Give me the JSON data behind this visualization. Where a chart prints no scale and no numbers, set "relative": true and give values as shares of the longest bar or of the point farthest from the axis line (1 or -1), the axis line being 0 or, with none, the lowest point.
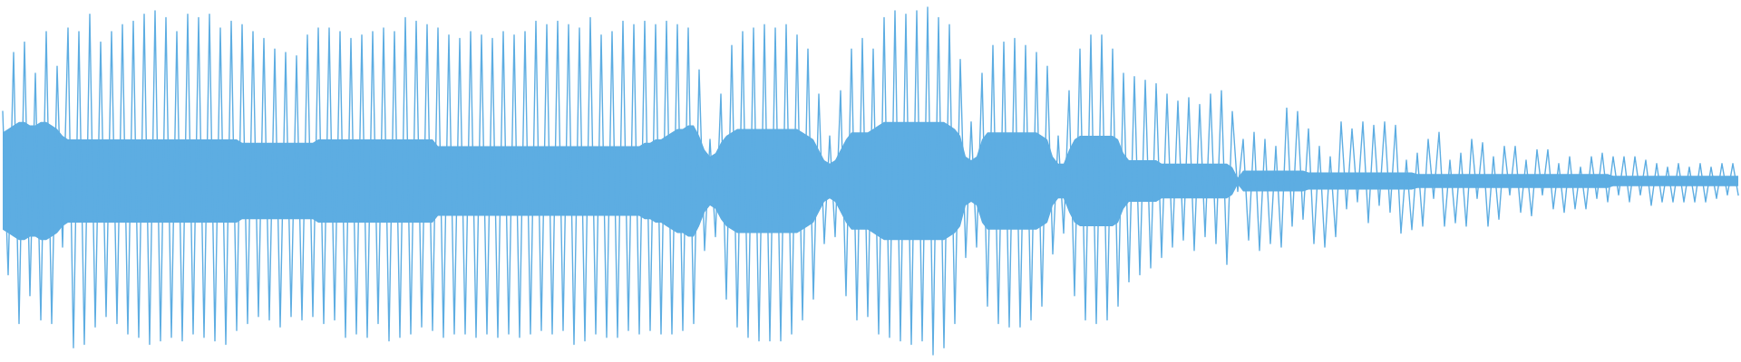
{
  "chart_data": {
    "type": "line",
    "relative": true,
    "tick_labels": false,
    "categories": [
      null,
      null,
      null,
      null,
      null,
      null,
      null,
      null,
      null,
      null,
      null,
      null,
      null,
      null,
      null,
      null,
      null,
      null,
      null,
      null,
      null,
      null,
      null,
      null,
      null,
      null,
      null,
      null,
      null,
      null,
      null,
      null,
      null,
      null,
      null,
      null,
      null,
      null,
      null,
      null,
      null,
      null,
      null,
      null,
      null,
      null,
      null,
      null,
      null,
      null,
      null,
      null,
      null,
      null,
      null,
      null,
      null,
      null,
      null,
      null,
      null,
      null,
      null,
      null,
      null,
      null,
      null,
      null,
      null,
      null,
      null,
      null,
      null,
      null,
      null,
      null,
      null,
      null,
      null,
      null,
      null,
      null,
      null,
      null,
      null,
      null,
      null,
      null,
      null,
      null,
      null,
      null,
      null,
      null,
      null,
      null,
      null,
      null,
      null,
      null,
      null,
      null,
      null,
      null,
      null,
      null,
      null,
      null,
      null,
      null,
      null,
      null,
      null,
      null,
      null,
      null,
      null,
      null,
      null,
      null,
      null,
      null,
      null,
      null,
      null,
      null,
      null,
      null,
      null,
      null,
      null,
      null,
      null,
      null,
      null,
      null,
      null,
      null,
      null,
      null,
      null,
      null,
      null,
      null,
      null,
      null,
      null,
      null,
      null,
      null,
      null,
      null,
      null,
      null,
      null,
      null,
      null,
      null,
      null,
      null,
      null,
      null,
      null,
      null,
      null,
      null,
      null,
      null,
      null,
      null,
      null,
      null,
      null,
      null,
      null,
      null,
      null,
      null,
      null,
      null,
      null,
      null,
      null,
      null,
      null,
      null,
      null,
      null,
      null,
      null,
      null,
      null,
      null,
      null,
      null,
      null,
      null,
      null,
      null,
      null,
      null,
      null,
      null,
      null,
      null,
      null,
      null,
      null,
      null,
      null,
      null,
      null,
      null,
      null,
      null,
      null,
      null,
      null,
      null,
      null,
      null,
      null,
      null,
      null,
      null,
      null,
      null,
      null,
      null,
      null,
      null,
      null,
      null,
      null,
      null,
      null,
      null,
      null,
      null,
      null,
      null,
      null,
      null,
      null,
      null,
      null,
      null,
      null,
      null,
      null,
      null,
      null,
      null,
      null,
      null,
      null,
      null,
      null,
      null,
      null,
      null,
      null,
      null,
      null,
      null,
      null,
      null,
      null,
      null,
      null,
      null,
      null,
      null,
      null,
      null,
      null,
      null,
      null,
      null,
      null,
      null,
      null,
      null,
      null,
      null,
      null,
      null,
      null,
      null,
      null,
      null,
      null,
      null,
      null,
      null,
      null,
      null,
      null,
      null,
      null,
      null,
      null,
      null,
      null,
      null,
      null,
      null,
      null,
      null,
      null,
      null,
      null,
      null,
      null,
      null,
      null,
      null,
      null,
      null,
      null
    ],
    "series": [
      {
        "color": "#5dade2",
        "values": [
          0.7,
          0.23,
          0.87,
          0.09,
          0.9,
          0.17,
          0.81,
          0.1,
          0.93,
          0.09,
          0.83,
          0.31,
          0.94,
          0.02,
          0.93,
          0.03,
          0.98,
          0.08,
          0.9,
          0.11,
          0.93,
          0.09,
          0.95,
          0.06,
          0.96,
          0.05,
          0.98,
          0.03,
          0.99,
          0.04,
          0.97,
          0.05,
          0.93,
          0.04,
          0.98,
          0.06,
          0.97,
          0.05,
          0.98,
          0.04,
          0.94,
          0.03,
          0.96,
          0.07,
          0.95,
          0.09,
          0.93,
          0.11,
          0.91,
          0.1,
          0.88,
          0.08,
          0.87,
          0.11,
          0.86,
          0.1,
          0.92,
          0.11,
          0.94,
          0.09,
          0.94,
          0.1,
          0.93,
          0.05,
          0.91,
          0.06,
          0.92,
          0.05,
          0.93,
          0.09,
          0.94,
          0.04,
          0.93,
          0.05,
          0.97,
          0.06,
          0.96,
          0.08,
          0.95,
          0.07,
          0.94,
          0.05,
          0.92,
          0.06,
          0.91,
          0.06,
          0.93,
          0.05,
          0.92,
          0.06,
          0.91,
          0.05,
          0.93,
          0.06,
          0.92,
          0.05,
          0.93,
          0.06,
          0.96,
          0.07,
          0.95,
          0.06,
          0.96,
          0.07,
          0.95,
          0.03,
          0.94,
          0.04,
          0.97,
          0.06,
          0.92,
          0.05,
          0.93,
          0.05,
          0.96,
          0.07,
          0.95,
          0.06,
          0.96,
          0.07,
          0.95,
          0.06,
          0.96,
          0.06,
          0.95,
          0.07,
          0.94,
          0.09,
          0.82,
          0.3,
          0.62,
          0.34,
          0.75,
          0.16,
          0.89,
          0.08,
          0.93,
          0.05,
          0.94,
          0.04,
          0.95,
          0.04,
          0.94,
          0.04,
          0.95,
          0.06,
          0.92,
          0.1,
          0.88,
          0.16,
          0.75,
          0.32,
          0.63,
          0.34,
          0.76,
          0.17,
          0.88,
          0.1,
          0.91,
          0.11,
          0.88,
          0.06,
          0.97,
          0.05,
          0.99,
          0.04,
          0.98,
          0.03,
          0.99,
          0.04,
          1.0,
          0.0,
          0.97,
          0.02,
          0.95,
          0.09,
          0.85,
          0.28,
          0.67,
          0.31,
          0.81,
          0.14,
          0.89,
          0.09,
          0.9,
          0.08,
          0.91,
          0.08,
          0.89,
          0.1,
          0.87,
          0.14,
          0.83,
          0.29,
          0.63,
          0.35,
          0.76,
          0.17,
          0.88,
          0.1,
          0.92,
          0.09,
          0.92,
          0.1,
          0.88,
          0.14,
          0.81,
          0.21,
          0.8,
          0.23,
          0.79,
          0.25,
          0.78,
          0.28,
          0.75,
          0.31,
          0.73,
          0.33,
          0.74,
          0.3,
          0.72,
          0.34,
          0.75,
          0.32,
          0.76,
          0.26,
          0.7,
          0.47,
          0.62,
          0.33,
          0.64,
          0.3,
          0.62,
          0.32,
          0.6,
          0.31,
          0.71,
          0.37,
          0.7,
          0.39,
          0.65,
          0.32,
          0.6,
          0.31,
          0.57,
          0.34,
          0.67,
          0.42,
          0.65,
          0.44,
          0.67,
          0.38,
          0.66,
          0.43,
          0.67,
          0.41,
          0.66,
          0.35,
          0.56,
          0.36,
          0.58,
          0.37,
          0.62,
          0.45,
          0.64,
          0.37,
          0.56,
          0.38,
          0.58,
          0.37,
          0.62,
          0.45,
          0.61,
          0.37,
          0.57,
          0.39,
          0.6,
          0.46,
          0.6,
          0.41,
          0.56,
          0.4,
          0.59,
          0.46,
          0.59,
          0.42,
          0.55,
          0.41,
          0.57,
          0.42,
          0.54,
          0.42,
          0.57,
          0.45,
          0.58,
          0.44,
          0.57,
          0.46,
          0.57,
          0.44,
          0.57,
          0.46,
          0.56,
          0.43,
          0.55,
          0.44,
          0.54,
          0.44,
          0.55,
          0.44,
          0.54,
          0.44,
          0.55,
          0.44,
          0.54,
          0.45,
          0.55,
          0.46,
          0.55,
          0.46
        ],
        "upper": [
          0.64,
          0.65,
          0.66,
          0.67,
          0.67,
          0.66,
          0.66,
          0.67,
          0.67,
          0.66,
          0.65,
          0.63,
          0.62,
          0.62,
          0.62,
          0.62,
          0.62,
          0.62,
          0.62,
          0.62,
          0.62,
          0.62,
          0.62,
          0.62,
          0.62,
          0.62,
          0.62,
          0.62,
          0.62,
          0.62,
          0.62,
          0.62,
          0.62,
          0.62,
          0.62,
          0.62,
          0.62,
          0.62,
          0.62,
          0.62,
          0.62,
          0.62,
          0.62,
          0.62,
          0.61,
          0.61,
          0.61,
          0.61,
          0.61,
          0.61,
          0.61,
          0.61,
          0.61,
          0.61,
          0.61,
          0.61,
          0.61,
          0.61,
          0.62,
          0.62,
          0.62,
          0.62,
          0.62,
          0.62,
          0.62,
          0.62,
          0.62,
          0.62,
          0.62,
          0.62,
          0.62,
          0.62,
          0.62,
          0.62,
          0.62,
          0.62,
          0.62,
          0.62,
          0.62,
          0.62,
          0.6,
          0.6,
          0.6,
          0.6,
          0.6,
          0.6,
          0.6,
          0.6,
          0.6,
          0.6,
          0.6,
          0.6,
          0.6,
          0.6,
          0.6,
          0.6,
          0.6,
          0.6,
          0.6,
          0.6,
          0.6,
          0.6,
          0.6,
          0.6,
          0.6,
          0.6,
          0.6,
          0.6,
          0.6,
          0.6,
          0.6,
          0.6,
          0.6,
          0.6,
          0.6,
          0.6,
          0.6,
          0.6,
          0.61,
          0.61,
          0.62,
          0.62,
          0.63,
          0.64,
          0.65,
          0.65,
          0.66,
          0.66,
          0.63,
          0.59,
          0.57,
          0.58,
          0.61,
          0.63,
          0.64,
          0.65,
          0.65,
          0.65,
          0.65,
          0.65,
          0.65,
          0.65,
          0.65,
          0.65,
          0.65,
          0.65,
          0.65,
          0.64,
          0.63,
          0.62,
          0.59,
          0.56,
          0.55,
          0.56,
          0.59,
          0.62,
          0.64,
          0.64,
          0.64,
          0.64,
          0.65,
          0.66,
          0.67,
          0.67,
          0.67,
          0.67,
          0.67,
          0.67,
          0.67,
          0.67,
          0.67,
          0.67,
          0.67,
          0.67,
          0.66,
          0.65,
          0.63,
          0.57,
          0.56,
          0.57,
          0.62,
          0.64,
          0.64,
          0.64,
          0.64,
          0.64,
          0.64,
          0.64,
          0.64,
          0.64,
          0.64,
          0.63,
          0.62,
          0.57,
          0.55,
          0.55,
          0.59,
          0.62,
          0.63,
          0.63,
          0.63,
          0.63,
          0.63,
          0.63,
          0.63,
          0.62,
          0.58,
          0.56,
          0.56,
          0.56,
          0.56,
          0.56,
          0.56,
          0.55,
          0.55,
          0.55,
          0.55,
          0.55,
          0.55,
          0.55,
          0.55,
          0.55,
          0.55,
          0.55,
          0.55,
          0.55,
          0.54,
          0.51,
          0.53,
          0.53,
          0.53,
          0.53,
          0.53,
          0.53,
          0.53,
          0.53,
          0.53,
          0.53,
          0.53,
          0.53,
          0.525,
          0.525,
          0.525,
          0.525,
          0.525,
          0.525,
          0.525,
          0.525,
          0.525,
          0.525,
          0.525,
          0.525,
          0.525,
          0.525,
          0.525,
          0.525,
          0.525,
          0.525,
          0.525,
          0.525,
          0.52,
          0.52,
          0.52,
          0.52,
          0.52,
          0.52,
          0.52,
          0.52,
          0.52,
          0.52,
          0.52,
          0.52,
          0.52,
          0.52,
          0.52,
          0.52,
          0.52,
          0.52,
          0.52,
          0.52,
          0.52,
          0.52,
          0.52,
          0.52,
          0.52,
          0.52,
          0.52,
          0.52,
          0.52,
          0.52,
          0.52,
          0.52,
          0.52,
          0.52,
          0.52,
          0.52,
          0.515,
          0.515,
          0.515,
          0.515,
          0.515,
          0.515,
          0.515,
          0.515,
          0.515,
          0.515,
          0.515,
          0.515,
          0.515,
          0.515,
          0.515,
          0.515,
          0.515,
          0.515,
          0.515,
          0.515,
          0.515,
          0.515,
          0.515,
          0.515
        ],
        "lower": [
          0.36,
          0.35,
          0.34,
          0.33,
          0.33,
          0.34,
          0.34,
          0.33,
          0.33,
          0.34,
          0.35,
          0.37,
          0.38,
          0.38,
          0.38,
          0.38,
          0.38,
          0.38,
          0.38,
          0.38,
          0.38,
          0.38,
          0.38,
          0.38,
          0.38,
          0.38,
          0.38,
          0.38,
          0.38,
          0.38,
          0.38,
          0.38,
          0.38,
          0.38,
          0.38,
          0.38,
          0.38,
          0.38,
          0.38,
          0.38,
          0.38,
          0.38,
          0.38,
          0.38,
          0.39,
          0.39,
          0.39,
          0.39,
          0.39,
          0.39,
          0.39,
          0.39,
          0.39,
          0.39,
          0.39,
          0.39,
          0.39,
          0.39,
          0.38,
          0.38,
          0.38,
          0.38,
          0.38,
          0.38,
          0.38,
          0.38,
          0.38,
          0.38,
          0.38,
          0.38,
          0.38,
          0.38,
          0.38,
          0.38,
          0.38,
          0.38,
          0.38,
          0.38,
          0.38,
          0.38,
          0.4,
          0.4,
          0.4,
          0.4,
          0.4,
          0.4,
          0.4,
          0.4,
          0.4,
          0.4,
          0.4,
          0.4,
          0.4,
          0.4,
          0.4,
          0.4,
          0.4,
          0.4,
          0.4,
          0.4,
          0.4,
          0.4,
          0.4,
          0.4,
          0.4,
          0.4,
          0.4,
          0.4,
          0.4,
          0.4,
          0.4,
          0.4,
          0.4,
          0.4,
          0.4,
          0.4,
          0.4,
          0.4,
          0.39,
          0.39,
          0.38,
          0.38,
          0.37,
          0.36,
          0.35,
          0.35,
          0.34,
          0.34,
          0.37,
          0.41,
          0.43,
          0.42,
          0.39,
          0.37,
          0.36,
          0.35,
          0.35,
          0.35,
          0.35,
          0.35,
          0.35,
          0.35,
          0.35,
          0.35,
          0.35,
          0.35,
          0.35,
          0.36,
          0.37,
          0.38,
          0.41,
          0.44,
          0.45,
          0.44,
          0.41,
          0.38,
          0.36,
          0.36,
          0.36,
          0.36,
          0.35,
          0.34,
          0.33,
          0.33,
          0.33,
          0.33,
          0.33,
          0.33,
          0.33,
          0.33,
          0.33,
          0.33,
          0.33,
          0.33,
          0.34,
          0.35,
          0.37,
          0.43,
          0.44,
          0.43,
          0.38,
          0.36,
          0.36,
          0.36,
          0.36,
          0.36,
          0.36,
          0.36,
          0.36,
          0.36,
          0.36,
          0.37,
          0.38,
          0.43,
          0.45,
          0.45,
          0.41,
          0.38,
          0.37,
          0.37,
          0.37,
          0.37,
          0.37,
          0.37,
          0.37,
          0.38,
          0.42,
          0.44,
          0.44,
          0.44,
          0.44,
          0.44,
          0.44,
          0.45,
          0.45,
          0.45,
          0.45,
          0.45,
          0.45,
          0.45,
          0.45,
          0.45,
          0.45,
          0.45,
          0.45,
          0.45,
          0.46,
          0.49,
          0.47,
          0.47,
          0.47,
          0.47,
          0.47,
          0.47,
          0.47,
          0.47,
          0.47,
          0.47,
          0.47,
          0.47,
          0.475,
          0.475,
          0.475,
          0.475,
          0.475,
          0.475,
          0.475,
          0.475,
          0.475,
          0.475,
          0.475,
          0.475,
          0.475,
          0.475,
          0.475,
          0.475,
          0.475,
          0.475,
          0.475,
          0.475,
          0.48,
          0.48,
          0.48,
          0.48,
          0.48,
          0.48,
          0.48,
          0.48,
          0.48,
          0.48,
          0.48,
          0.48,
          0.48,
          0.48,
          0.48,
          0.48,
          0.48,
          0.48,
          0.48,
          0.48,
          0.48,
          0.48,
          0.48,
          0.48,
          0.48,
          0.48,
          0.48,
          0.48,
          0.48,
          0.48,
          0.48,
          0.48,
          0.48,
          0.48,
          0.48,
          0.48,
          0.485,
          0.485,
          0.485,
          0.485,
          0.485,
          0.485,
          0.485,
          0.485,
          0.485,
          0.485,
          0.485,
          0.485,
          0.485,
          0.485,
          0.485,
          0.485,
          0.485,
          0.485,
          0.485,
          0.485,
          0.485,
          0.485,
          0.485,
          0.485
        ]
      }
    ]
  }
}
